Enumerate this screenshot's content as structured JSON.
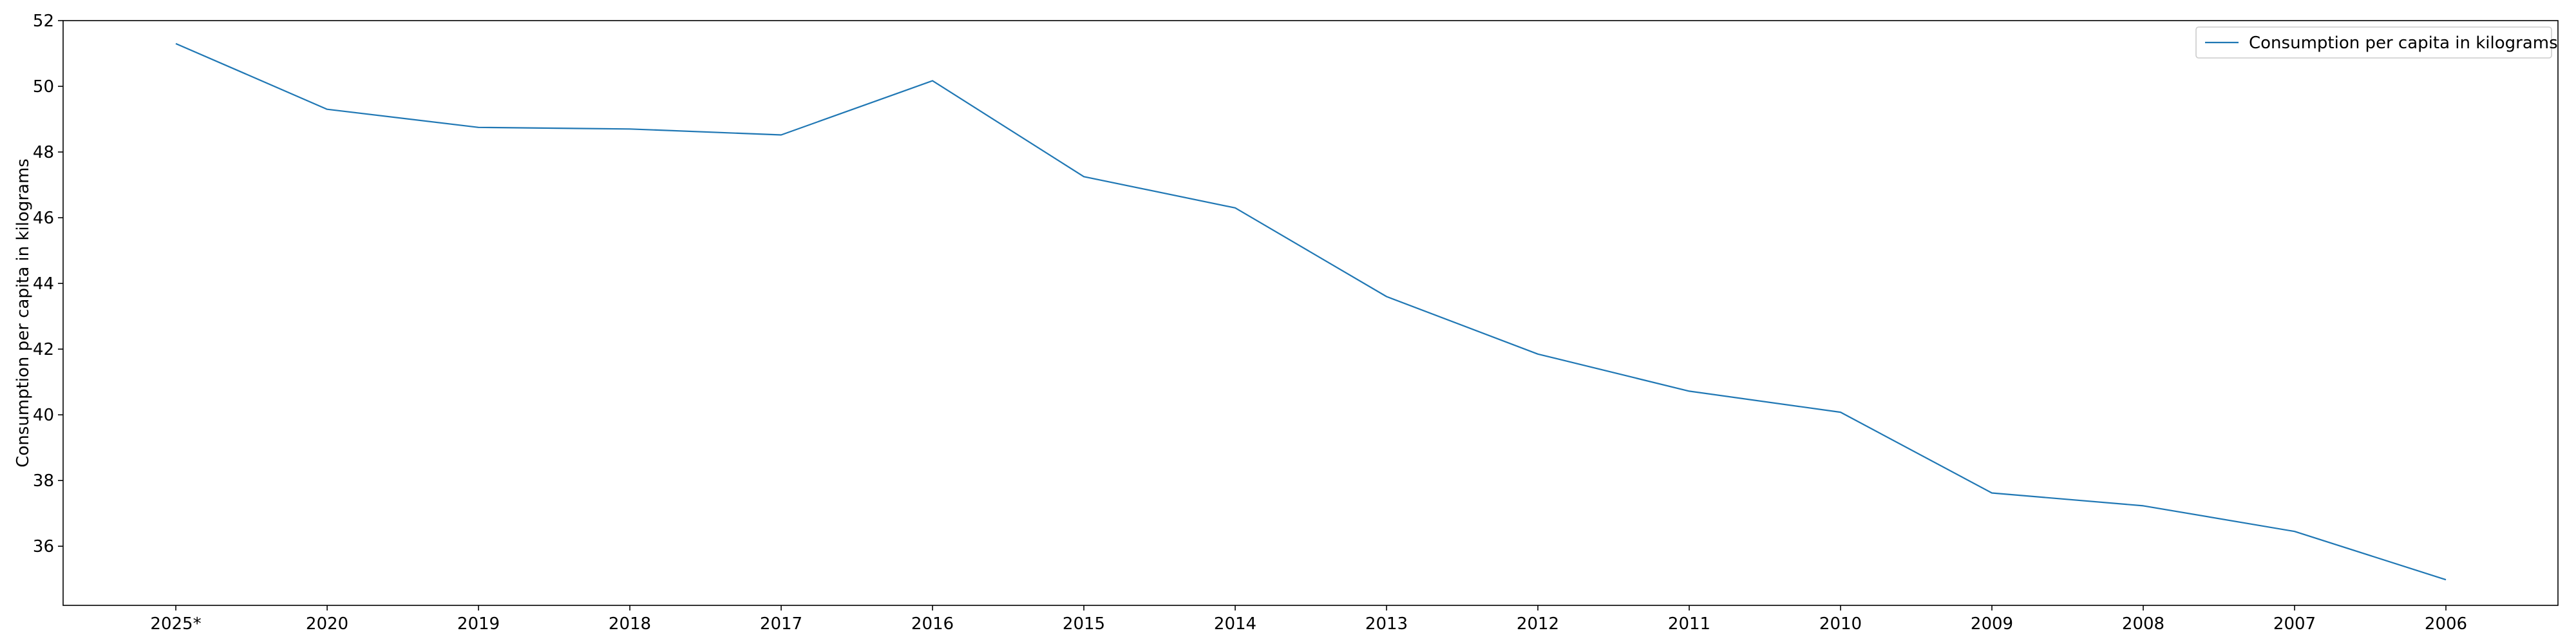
{
  "chart_data": {
    "type": "line",
    "title": "",
    "xlabel": "",
    "ylabel": "Consumption per capita in kilograms",
    "categories": [
      "2025*",
      "2020",
      "2019",
      "2018",
      "2017",
      "2016",
      "2015",
      "2014",
      "2013",
      "2012",
      "2011",
      "2010",
      "2009",
      "2008",
      "2007",
      "2006"
    ],
    "series": [
      {
        "name": "Consumption per capita in kilograms",
        "values": [
          51.3,
          49.3,
          48.75,
          48.7,
          48.52,
          50.17,
          47.25,
          46.3,
          43.6,
          41.85,
          40.72,
          40.08,
          37.62,
          37.23,
          36.45,
          34.98
        ],
        "color": "#1f77b4"
      }
    ],
    "ylim": [
      34.2,
      52.0
    ],
    "yticks": [
      36,
      38,
      40,
      42,
      44,
      46,
      48,
      50,
      52
    ],
    "grid": false,
    "legend": "top-right"
  }
}
